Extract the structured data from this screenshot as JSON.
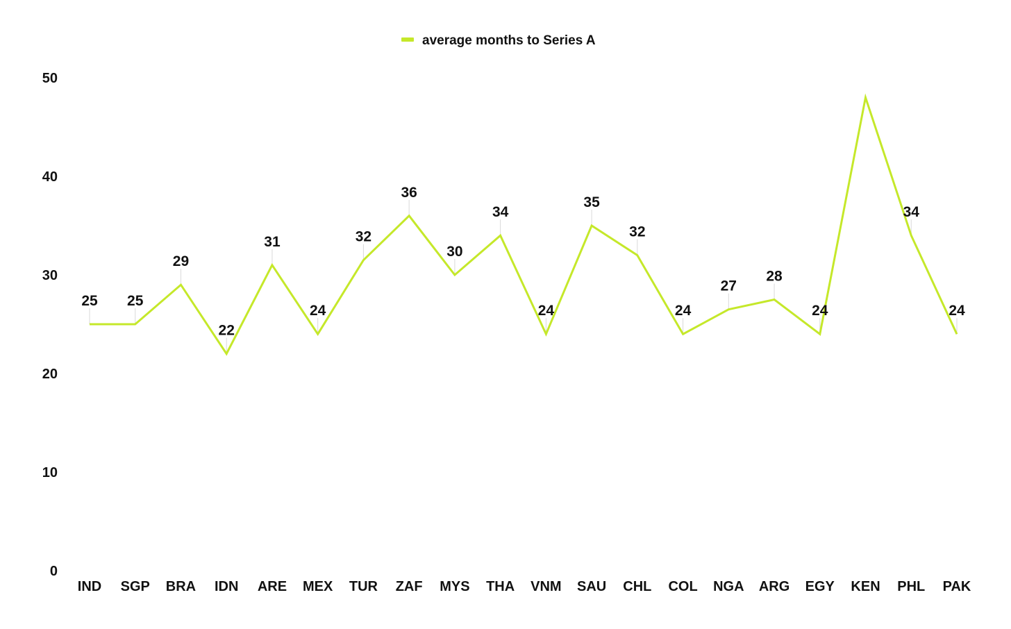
{
  "chart_data": {
    "type": "line",
    "title": "",
    "xlabel": "",
    "ylabel": "",
    "categories": [
      "IND",
      "SGP",
      "BRA",
      "IDN",
      "ARE",
      "MEX",
      "TUR",
      "ZAF",
      "MYS",
      "THA",
      "VNM",
      "SAU",
      "CHL",
      "COL",
      "NGA",
      "ARG",
      "EGY",
      "KEN",
      "PHL",
      "PAK"
    ],
    "series": [
      {
        "name": "average months to Series A",
        "color": "#c5e82a",
        "values": [
          25,
          25,
          29,
          22,
          31,
          24,
          31.5,
          36,
          30,
          34,
          24,
          35,
          32,
          24,
          26.5,
          27.5,
          24,
          48,
          34,
          24
        ],
        "labels": [
          "25",
          "25",
          "29",
          "22",
          "31",
          "24",
          "32",
          "36",
          "30",
          "34",
          "24",
          "35",
          "32",
          "24",
          "27",
          "28",
          "24",
          "",
          "34",
          "24"
        ]
      }
    ],
    "ylim": [
      0,
      50
    ],
    "yticks": [
      "0",
      "10",
      "20",
      "30",
      "40",
      "50"
    ],
    "grid": false,
    "legend_position": "top-center"
  }
}
